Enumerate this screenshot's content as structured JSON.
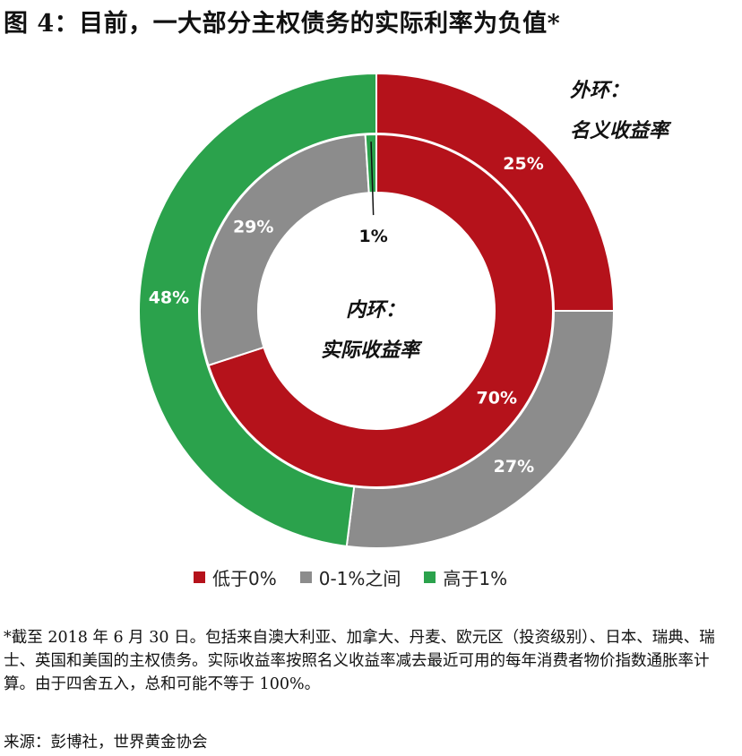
{
  "title": "图 4：目前，一大部分主权债务的实际利率为负值*",
  "chart_data": {
    "type": "pie",
    "subtype": "nested-donut",
    "rings": [
      {
        "name": "外环：名义收益率",
        "label_line1": "外环：",
        "label_line2": "名义收益率",
        "slices": [
          {
            "category": "低于0%",
            "value": 25,
            "label": "25%"
          },
          {
            "category": "0-1%之间",
            "value": 27,
            "label": "27%"
          },
          {
            "category": "高于1%",
            "value": 48,
            "label": "48%"
          }
        ]
      },
      {
        "name": "内环：实际收益率",
        "label_line1": "内环：",
        "label_line2": "实际收益率",
        "slices": [
          {
            "category": "低于0%",
            "value": 70,
            "label": "70%"
          },
          {
            "category": "0-1%之间",
            "value": 29,
            "label": "29%"
          },
          {
            "category": "高于1%",
            "value": 1,
            "label": "1%"
          }
        ]
      }
    ],
    "legend": [
      {
        "label": "低于0%",
        "color": "#b5121b"
      },
      {
        "label": "0-1%之间",
        "color": "#8c8c8c"
      },
      {
        "label": "高于1%",
        "color": "#2ba24c"
      }
    ],
    "legend_position": "bottom"
  },
  "footnote": "*截至 2018 年 6 月 30 日。包括来自澳大利亚、加拿大、丹麦、欧元区（投资级别）、日本、瑞典、瑞士、英国和美国的主权债务。实际收益率按照名义收益率减去最近可用的每年消费者物价指数通胀率计算。由于四舍五入，总和可能不等于 100%。",
  "source": "来源：彭博社，世界黄金协会"
}
